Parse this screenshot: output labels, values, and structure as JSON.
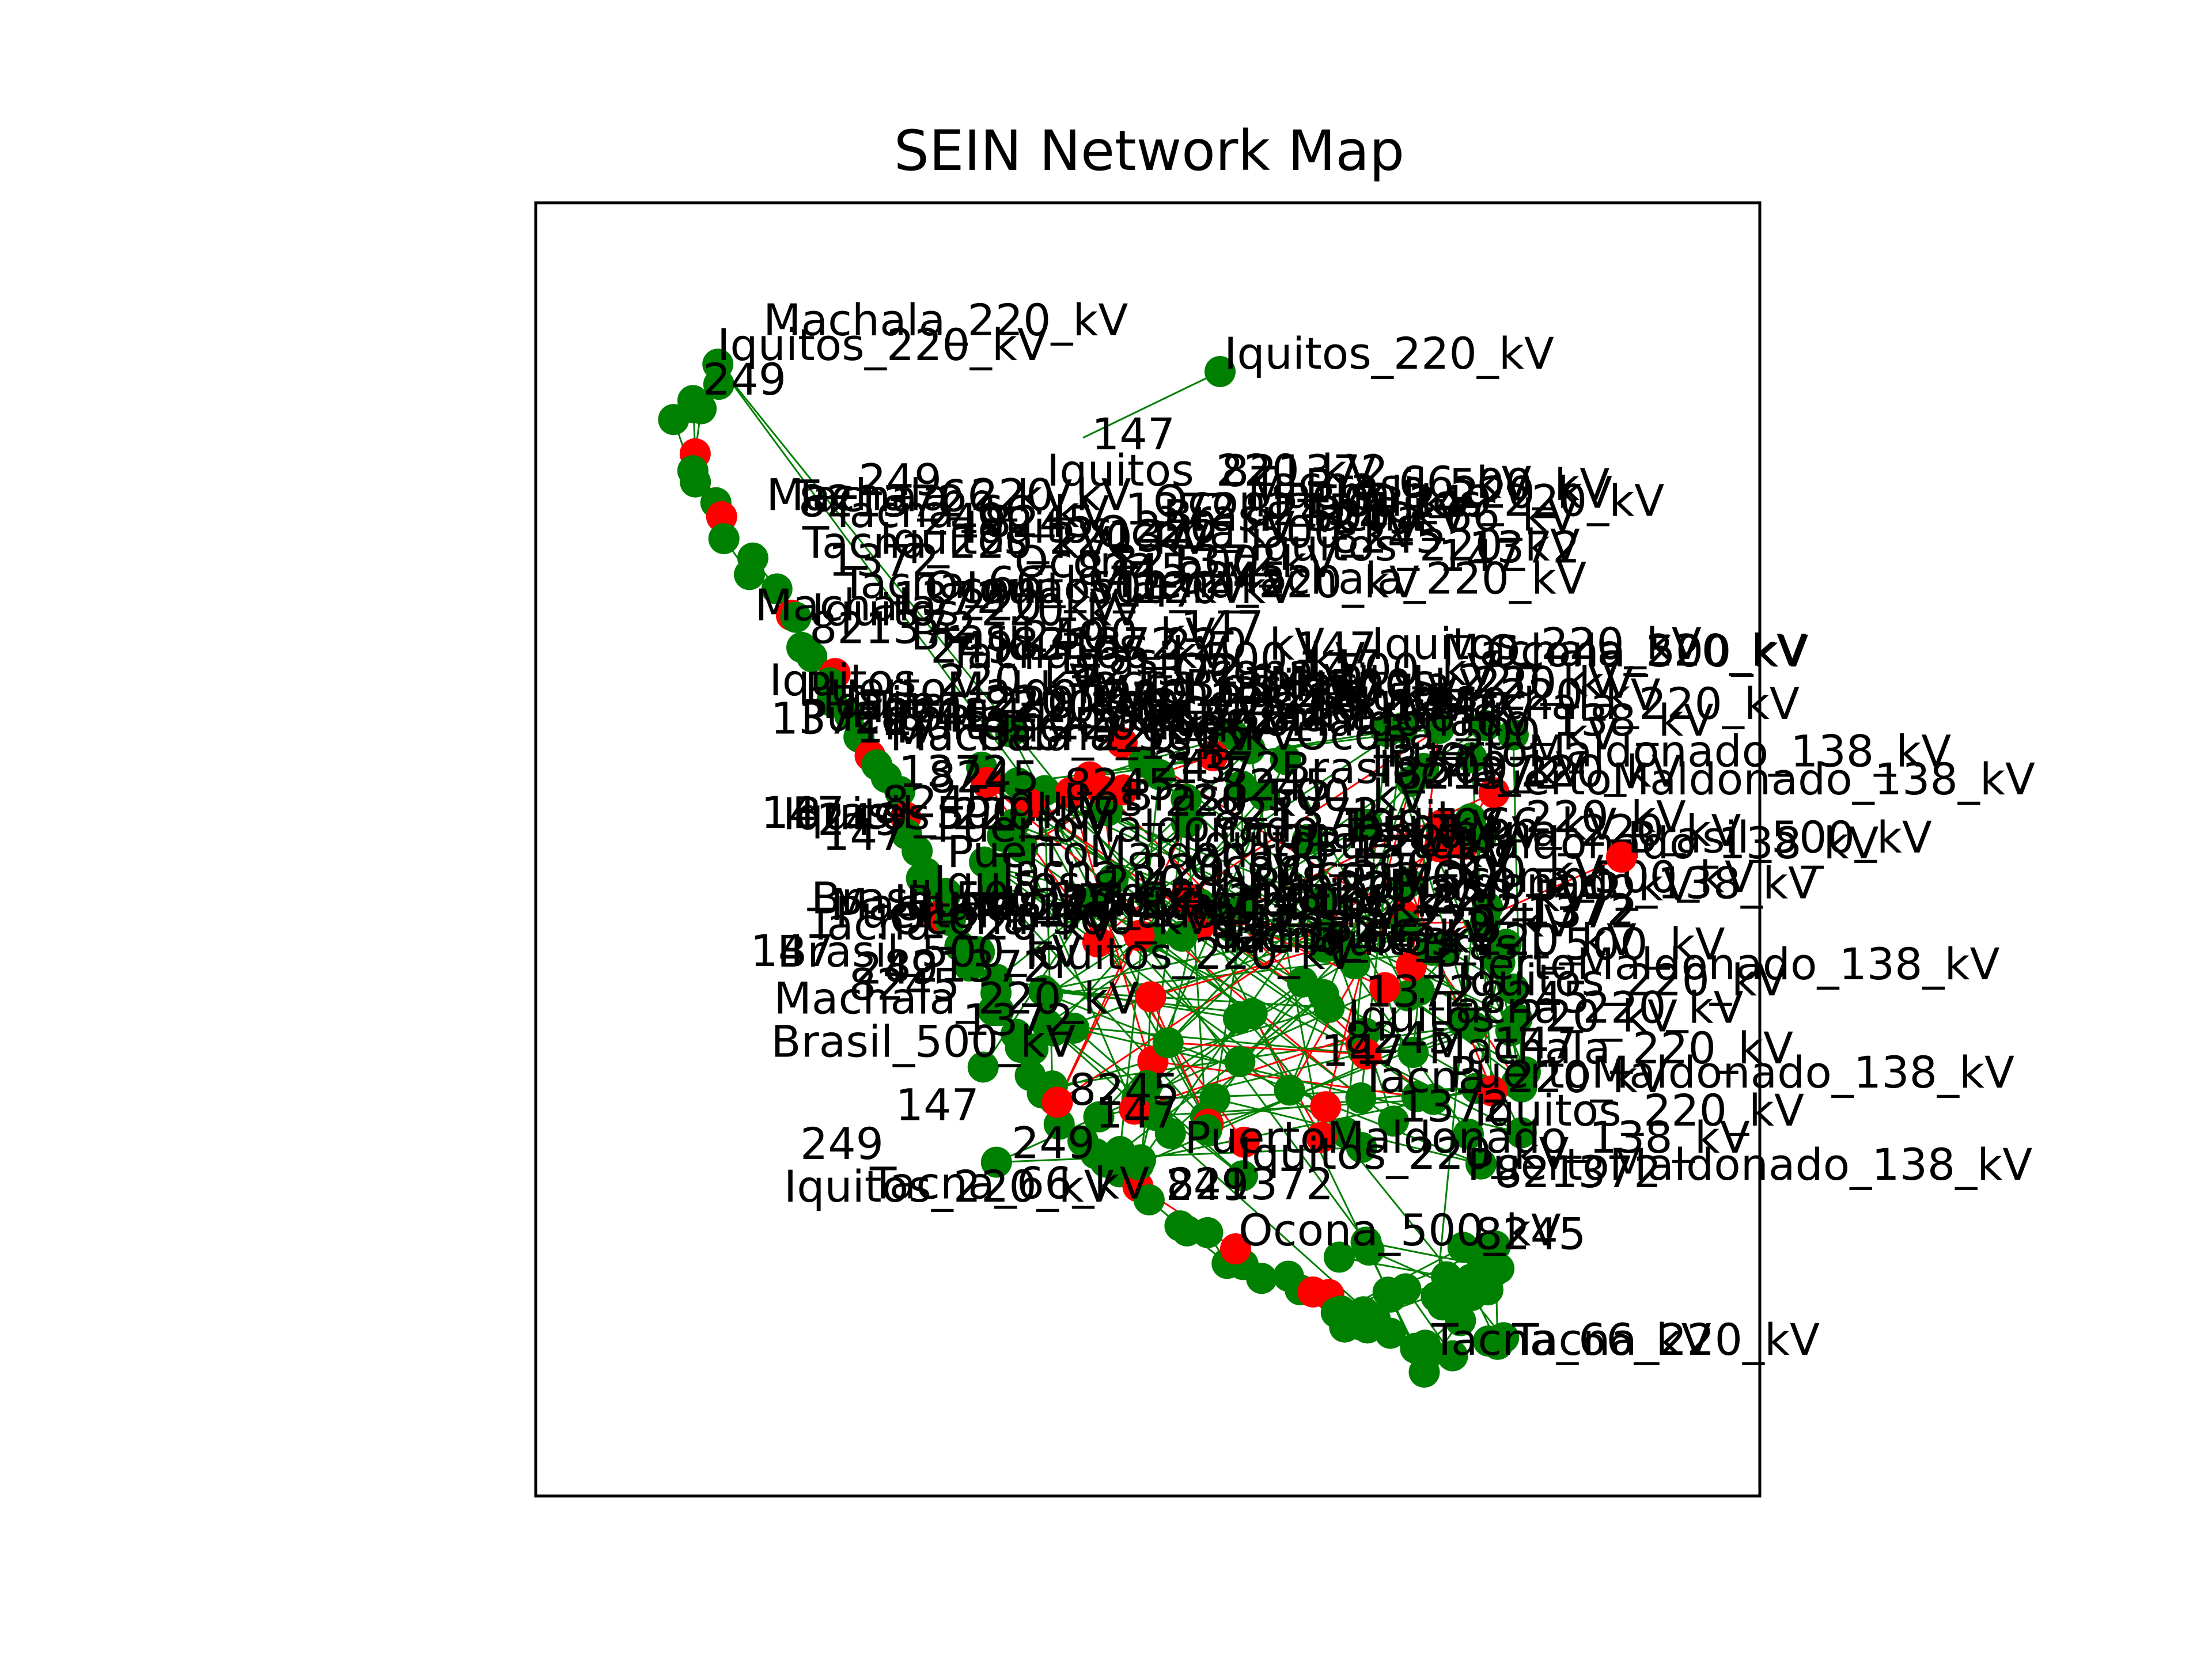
{
  "title": "SEIN Network Map",
  "colors": {
    "node_500kV": "#ff0000",
    "node_other": "#008000",
    "edge_500kV": "#ff0000",
    "edge_other": "#008000",
    "label": "#000000"
  },
  "nodes": [
    {
      "id": "machala",
      "label": "Machala_220_kV",
      "color": "green"
    },
    {
      "id": "iquitos_a",
      "label": "Iquitos_220_kV",
      "color": "green"
    },
    {
      "id": "iquitos_b",
      "label": "Iquitos_220_kV",
      "color": "green"
    },
    {
      "id": "n249",
      "label": "249",
      "color": "green"
    },
    {
      "id": "n147",
      "label": "147",
      "color": "green"
    },
    {
      "id": "brasil",
      "label": "Brasil_500_kV",
      "color": "red"
    },
    {
      "id": "n1372",
      "label": "1372",
      "color": "green"
    },
    {
      "id": "puerto_maldonado",
      "label": "PuertoMaldonado_138_kV",
      "color": "green"
    },
    {
      "id": "ocona",
      "label": "Ocona_500_kV",
      "color": "red"
    },
    {
      "id": "n821372",
      "label": "821372",
      "color": "green"
    },
    {
      "id": "n8245",
      "label": "8245",
      "color": "green"
    },
    {
      "id": "tacna",
      "label": "Tacna_66_kV",
      "color": "green"
    },
    {
      "id": "tacna220",
      "label": "Tacna_220_kV",
      "color": "green"
    }
  ]
}
